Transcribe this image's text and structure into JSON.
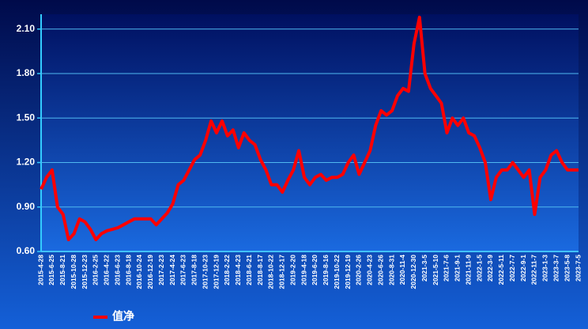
{
  "chart_data": {
    "type": "line",
    "categories": [
      "2015-4-28",
      null,
      "2015-6-25",
      null,
      "2015-8-21",
      null,
      "2015-10-28",
      null,
      "2015-12-23",
      null,
      "2016-2-25",
      null,
      "2016-4-22",
      null,
      "2016-6-23",
      null,
      "2016-8-18",
      null,
      "2016-10-24",
      null,
      "2016-12-19",
      null,
      "2017-2-23",
      null,
      "2017-4-24",
      null,
      "2017-6-23",
      null,
      "2017-8-18",
      null,
      "2017-10-23",
      null,
      "2017-12-19",
      null,
      "2018-2-22",
      null,
      "2018-4-23",
      null,
      "2018-6-21",
      null,
      "2018-8-17",
      null,
      "2018-10-22",
      null,
      "2018-12-17",
      null,
      "2019-2-20",
      null,
      "2019-4-18",
      null,
      "2019-6-20",
      null,
      "2019-8-16",
      null,
      "2019-10-22",
      null,
      "2019-12-19",
      null,
      "2020-2-26",
      null,
      "2020-4-23",
      null,
      "2020-6-26",
      null,
      "2020-8-31",
      null,
      "2020-11-4",
      null,
      "2020-12-30",
      null,
      "2021-3-5",
      null,
      "2021-5-10",
      null,
      "2021-7-6",
      null,
      "2021-9-1",
      null,
      "2021-11-9",
      null,
      "2022-1-5",
      null,
      "2022-3-9",
      null,
      "2022-5-11",
      null,
      "2022-7-7",
      null,
      "2022-9-1",
      null,
      "2022-11-7",
      null,
      "2023-1-3",
      null,
      "2023-3-7",
      null,
      "2023-5-8",
      null,
      "2023-7-5"
    ],
    "series": [
      {
        "name": "值净",
        "color": "#ff0000",
        "values": [
          1.02,
          1.1,
          1.15,
          0.9,
          0.85,
          0.68,
          0.72,
          0.82,
          0.8,
          0.75,
          0.68,
          0.72,
          0.74,
          0.75,
          0.76,
          0.78,
          0.8,
          0.82,
          0.82,
          0.82,
          0.82,
          0.78,
          0.82,
          0.86,
          0.92,
          1.05,
          1.08,
          1.15,
          1.22,
          1.25,
          1.35,
          1.48,
          1.4,
          1.48,
          1.38,
          1.42,
          1.3,
          1.4,
          1.35,
          1.32,
          1.22,
          1.15,
          1.05,
          1.05,
          1.0,
          1.08,
          1.15,
          1.28,
          1.1,
          1.05,
          1.1,
          1.12,
          1.08,
          1.1,
          1.1,
          1.12,
          1.2,
          1.25,
          1.12,
          1.2,
          1.28,
          1.45,
          1.55,
          1.52,
          1.55,
          1.65,
          1.7,
          1.68,
          2.0,
          2.18,
          1.8,
          1.7,
          1.65,
          1.6,
          1.4,
          1.5,
          1.45,
          1.5,
          1.4,
          1.38,
          1.3,
          1.2,
          0.95,
          1.1,
          1.15,
          1.15,
          1.2,
          1.15,
          1.1,
          1.15,
          0.85,
          1.1,
          1.15,
          1.25,
          1.28,
          1.2,
          1.15,
          1.15,
          1.15
        ]
      }
    ],
    "ylim": [
      0.6,
      2.2
    ],
    "yticks": [
      {
        "value": 0.6,
        "label": "0.60"
      },
      {
        "value": 0.9,
        "label": "0.90"
      },
      {
        "value": 1.2,
        "label": "1.20"
      },
      {
        "value": 1.5,
        "label": "1.50"
      },
      {
        "value": 1.8,
        "label": "1.80"
      },
      {
        "value": 2.1,
        "label": "2.10"
      }
    ],
    "grid": true,
    "legend": "bottom-left"
  }
}
